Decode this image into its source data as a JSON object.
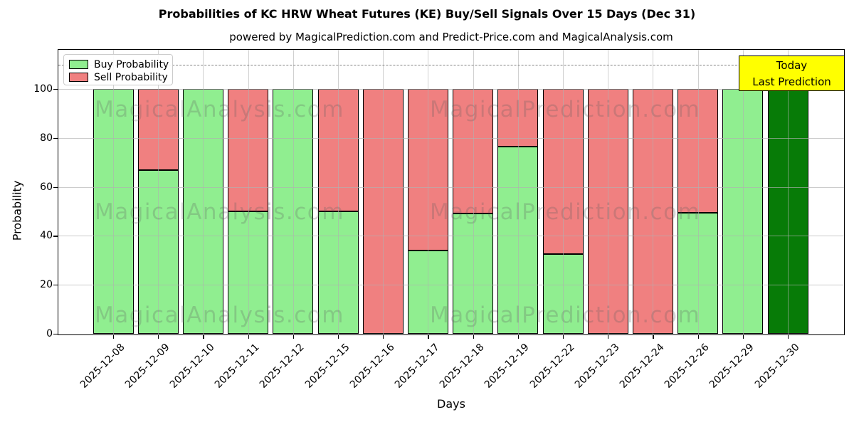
{
  "title": "Probabilities of KC HRW Wheat Futures (KE) Buy/Sell Signals Over 15 Days (Dec 31)",
  "subtitle": "powered by MagicalPrediction.com and Predict-Price.com and MagicalAnalysis.com",
  "watermarks": {
    "left": "MagicalAnalysis.com",
    "right": "MagicalPrediction.com"
  },
  "legend": {
    "items": [
      {
        "label": "Buy Probability",
        "color": "#90ee90"
      },
      {
        "label": "Sell Probability",
        "color": "#f08080"
      }
    ],
    "position": "upper left"
  },
  "annotation_box": {
    "line1": "Today",
    "line2": "Last Prediction",
    "bg_color": "#ffff00",
    "position": "upper right"
  },
  "axis": {
    "xlabel": "Days",
    "ylabel": "Probability"
  },
  "colors": {
    "buy": "#90ee90",
    "sell": "#f08080",
    "today_bar": "#077b07",
    "bar_edge": "#000000",
    "grid": "#b0b0b0",
    "dashed_line": "#808080",
    "background": "#ffffff"
  },
  "chart_data": {
    "type": "bar",
    "stacked": true,
    "title": "Probabilities of KC HRW Wheat Futures (KE) Buy/Sell Signals Over 15 Days (Dec 31)",
    "xlabel": "Days",
    "ylabel": "Probability",
    "ylim": [
      0,
      116
    ],
    "yticks": [
      0,
      20,
      40,
      60,
      80,
      100
    ],
    "grid": true,
    "dashed_guide_line_y": 110,
    "legend_position": "upper left",
    "categories": [
      "2025-12-08",
      "2025-12-09",
      "2025-12-10",
      "2025-12-11",
      "2025-12-12",
      "2025-12-15",
      "2025-12-16",
      "2025-12-17",
      "2025-12-18",
      "2025-12-19",
      "2025-12-22",
      "2025-12-23",
      "2025-12-24",
      "2025-12-26",
      "2025-12-29",
      "2025-12-30"
    ],
    "series": [
      {
        "name": "Buy Probability",
        "color": "#90ee90",
        "values": [
          100,
          67,
          100,
          50,
          100,
          50,
          0,
          34,
          49,
          76.5,
          32.5,
          0,
          0,
          49.5,
          100,
          100
        ]
      },
      {
        "name": "Sell Probability",
        "color": "#f08080",
        "values": [
          0,
          33,
          0,
          50,
          0,
          50,
          100,
          66,
          51,
          23.5,
          67.5,
          100,
          100,
          50.5,
          0,
          0
        ]
      }
    ],
    "today_bar": {
      "category": "2025-12-30",
      "index": 15,
      "color": "#077b07",
      "value": 100
    }
  }
}
